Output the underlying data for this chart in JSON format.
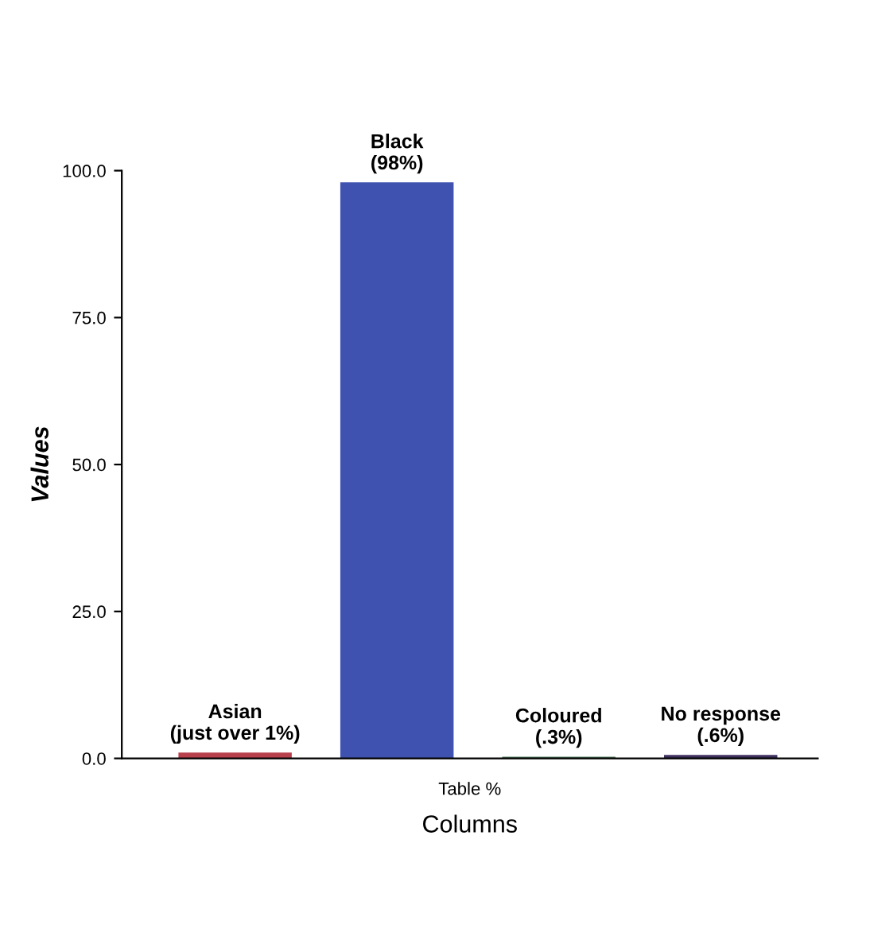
{
  "chart_data": {
    "type": "bar",
    "ylabel": "Values",
    "xlabel": "Columns",
    "categories": [
      null,
      null,
      null,
      null
    ],
    "values": [
      1,
      98,
      0.3,
      0.6
    ],
    "colors": [
      "#b8404c",
      "#3f52b0",
      "#4f7a5c",
      "#3f3060"
    ],
    "value_labels": [
      "Asian\n(just over 1%)",
      "Black\n(98%)",
      "Coloured\n(.3%)",
      "No response\n(.6%)"
    ],
    "ylim": [
      0,
      100
    ],
    "yticks": [
      {
        "value": 0,
        "label": "0.0"
      },
      {
        "value": 25,
        "label": "25.0"
      },
      {
        "value": 50,
        "label": "50.0"
      },
      {
        "value": 75,
        "label": "75.0"
      },
      {
        "value": 100,
        "label": "100.0"
      }
    ],
    "annotations": [
      "Table %"
    ],
    "grid": false,
    "legend": false
  }
}
